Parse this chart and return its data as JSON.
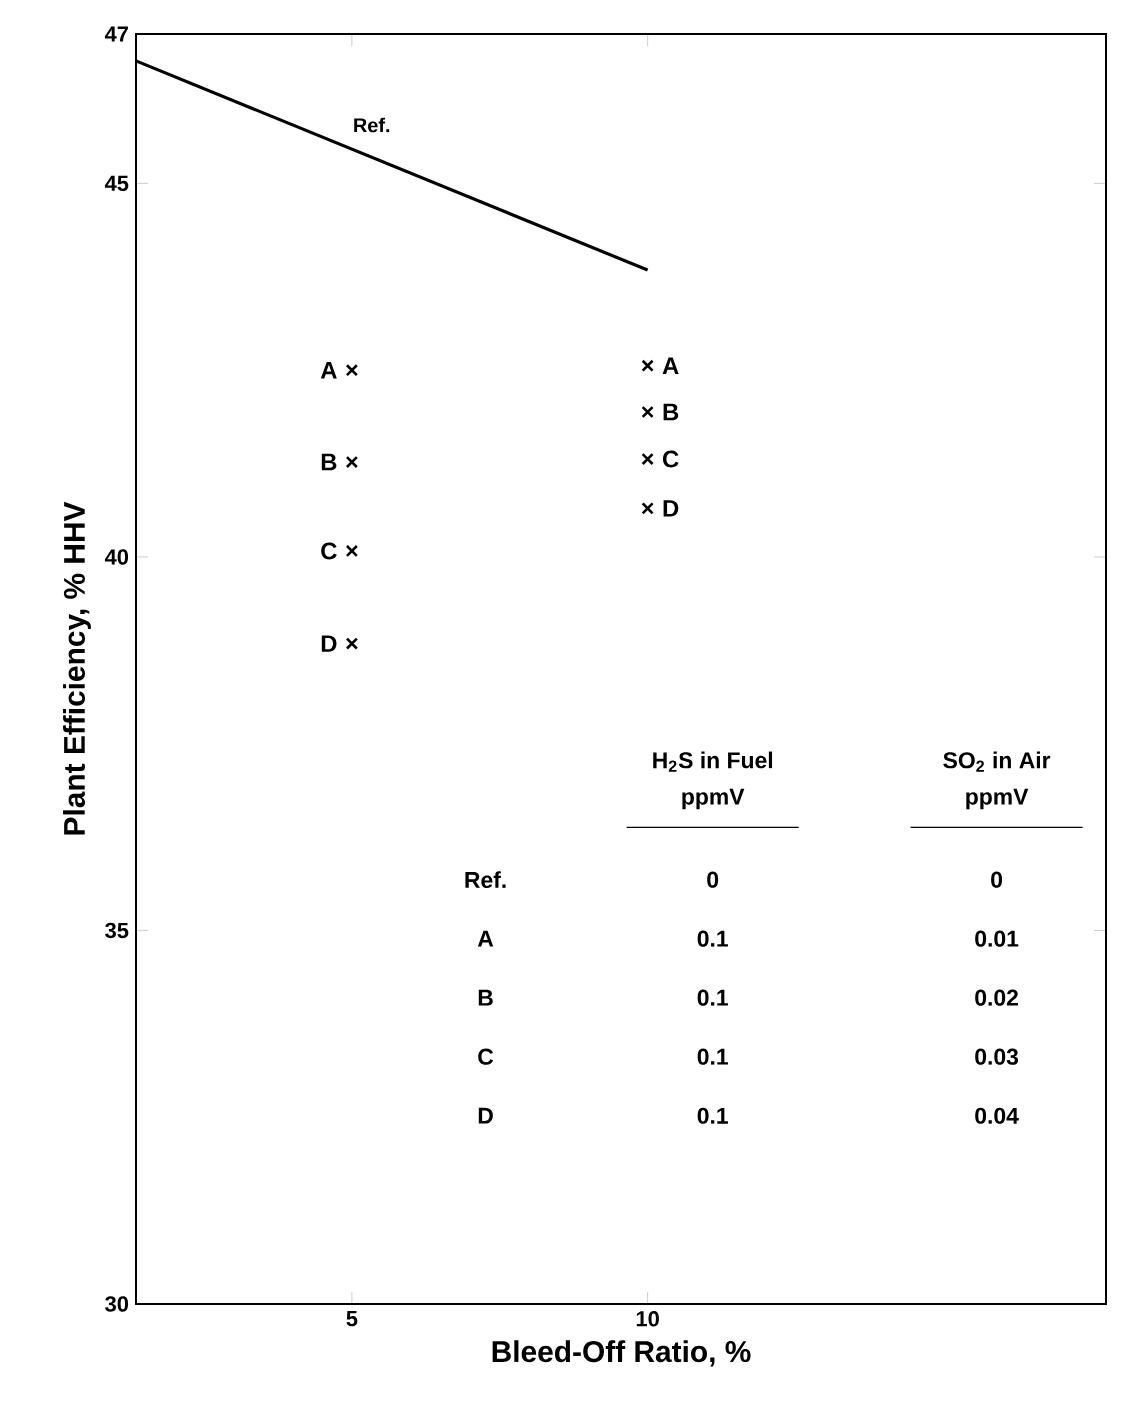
{
  "chart_data": {
    "type": "scatter",
    "xlabel": "Bleed-Off Ratio, %",
    "ylabel": "Plant Efficiency, % HHV",
    "xlim": [
      1.35,
      17.75
    ],
    "ylim": [
      30,
      47
    ],
    "xticks": [
      5,
      10
    ],
    "yticks": [
      30,
      35,
      40,
      45,
      47
    ],
    "grid": false,
    "series": [
      {
        "name": "Ref.",
        "type": "line",
        "color": "#000000",
        "marker": "none",
        "line_style": "solid",
        "x": [
          1.35,
          10
        ],
        "values": [
          46.64,
          43.84
        ]
      },
      {
        "name": "A",
        "color": "#000000",
        "marker": "cross",
        "x": [
          5,
          10
        ],
        "values": [
          42.5,
          42.56
        ]
      },
      {
        "name": "B",
        "color": "#000000",
        "marker": "cross",
        "x": [
          5,
          10
        ],
        "values": [
          41.27,
          41.94
        ]
      },
      {
        "name": "C",
        "color": "#000000",
        "marker": "cross",
        "x": [
          5,
          10
        ],
        "values": [
          40.08,
          41.31
        ]
      },
      {
        "name": "D",
        "color": "#000000",
        "marker": "cross",
        "x": [
          5,
          10
        ],
        "values": [
          38.84,
          40.65
        ]
      }
    ],
    "annotations": [
      "H$_{2}$S in Fuel",
      "ppmV",
      "SO$_{2}$ in Air",
      "ppmV",
      "Ref.",
      "0",
      "0",
      "A",
      "0.1",
      "0.01",
      "B",
      "0.1",
      "0.02",
      "C",
      "0.1",
      "0.03",
      "D",
      "0.1",
      "0.04"
    ]
  }
}
